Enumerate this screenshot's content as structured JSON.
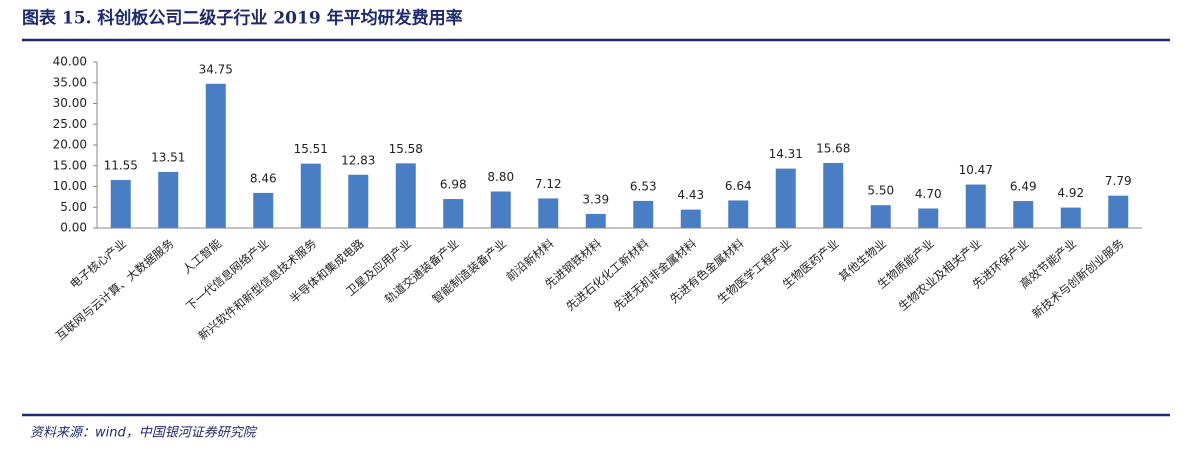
{
  "header": {
    "title": "图表 15. 科创板公司二级子行业 2019 年平均研发费用率"
  },
  "chart_data": {
    "type": "bar",
    "categories": [
      "电子核心产业",
      "互联网与云计算、大数据服务",
      "人工智能",
      "下一代信息网络产业",
      "新兴软件和新型信息技术服务",
      "半导体和集成电路",
      "卫星及应用产业",
      "轨道交通装备产业",
      "智能制造装备产业",
      "前沿新材料",
      "先进钢铁材料",
      "先进石化化工新材料",
      "先进无机非金属材料",
      "先进有色金属材料",
      "生物医学工程产业",
      "生物医药产业",
      "其他生物业",
      "生物质能产业",
      "生物农业及相关产业",
      "先进环保产业",
      "高效节能产业",
      "新技术与创新创业服务"
    ],
    "values": [
      11.55,
      13.51,
      34.75,
      8.46,
      15.51,
      12.83,
      15.58,
      6.98,
      8.8,
      7.12,
      3.39,
      6.53,
      4.43,
      6.64,
      14.31,
      15.68,
      5.5,
      4.7,
      10.47,
      6.49,
      4.92,
      7.79
    ],
    "value_labels": [
      "11.55",
      "13.51",
      "34.75",
      "8.46",
      "15.51",
      "12.83",
      "15.58",
      "6.98",
      "8.80",
      "7.12",
      "3.39",
      "6.53",
      "4.43",
      "6.64",
      "14.31",
      "15.68",
      "5.50",
      "4.70",
      "10.47",
      "6.49",
      "4.92",
      "7.79"
    ],
    "color": "#4a7ec4",
    "ylim": [
      0,
      40
    ],
    "yticks": [
      {
        "value": 0,
        "label": "0.00"
      },
      {
        "value": 5,
        "label": "5.00"
      },
      {
        "value": 10,
        "label": "10.00"
      },
      {
        "value": 15,
        "label": "15.00"
      },
      {
        "value": 20,
        "label": "20.00"
      },
      {
        "value": 25,
        "label": "25.00"
      },
      {
        "value": 30,
        "label": "30.00"
      },
      {
        "value": 35,
        "label": "35.00"
      },
      {
        "value": 40,
        "label": "40.00"
      }
    ]
  },
  "footer": {
    "source": "资料来源：wind，中国银河证券研究院"
  }
}
